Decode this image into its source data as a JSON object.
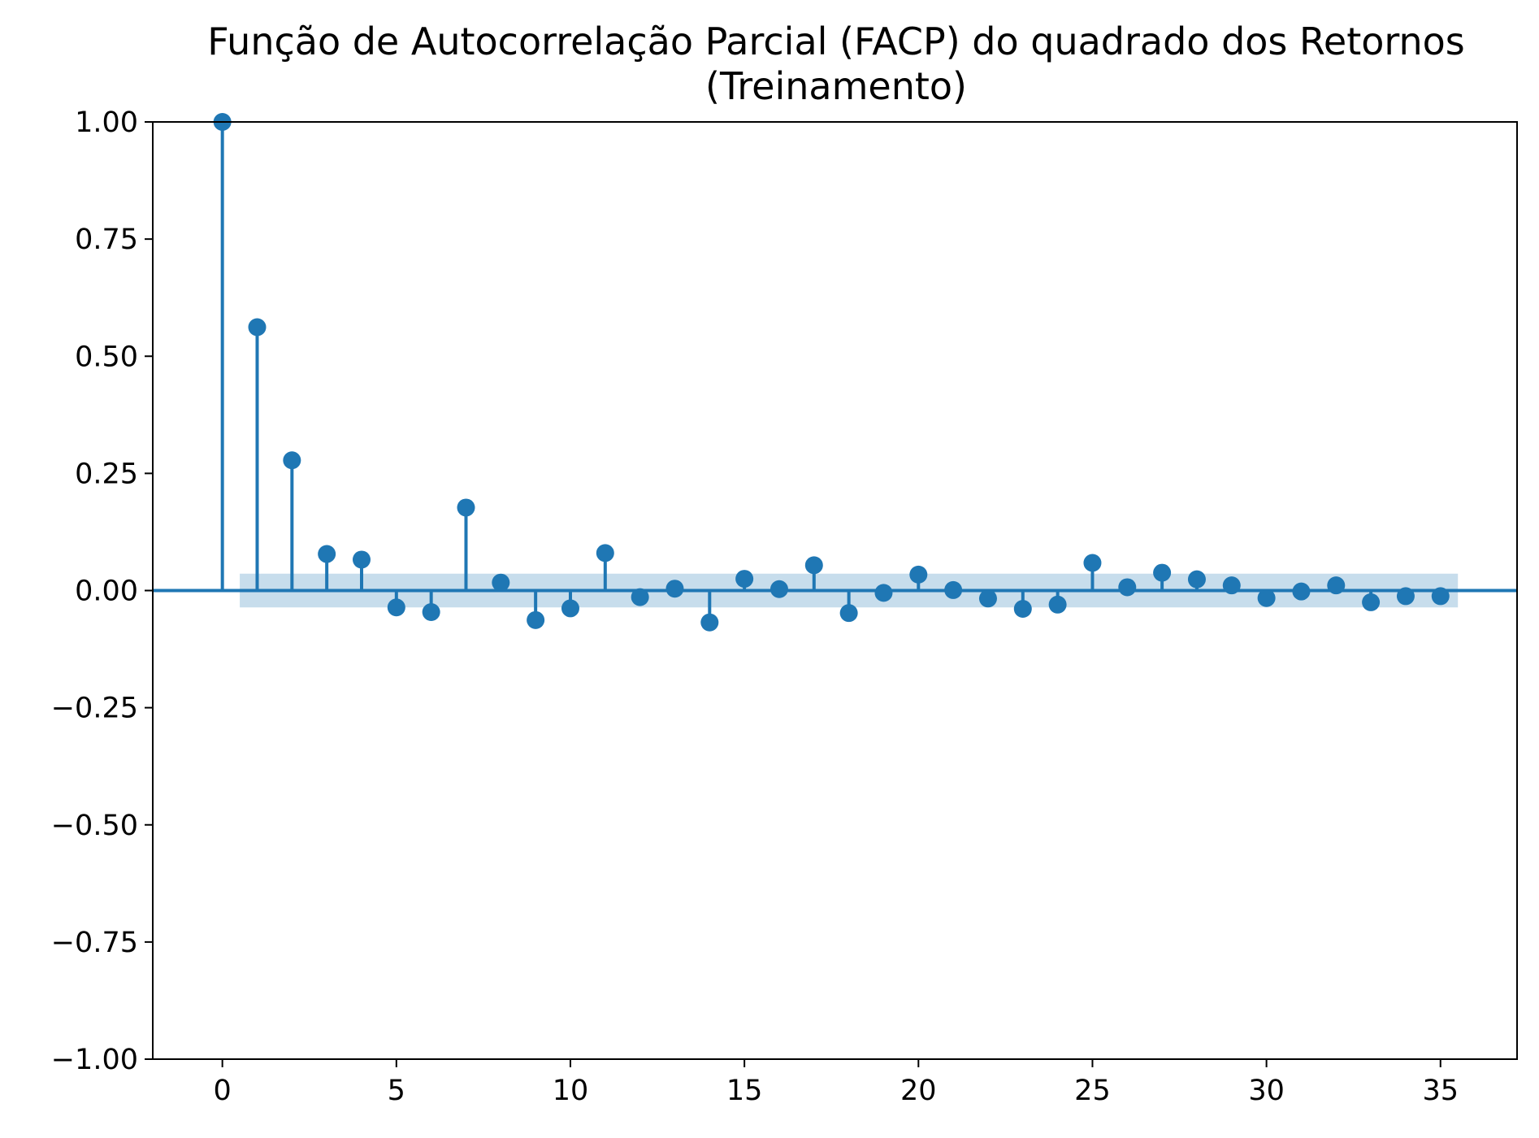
{
  "colors": {
    "series": "#1f77b4",
    "band": "#1f77b4",
    "axes": "#000000",
    "background": "#ffffff"
  },
  "chart_data": {
    "type": "stem",
    "title": "Função de Autocorrelação Parcial (FACP) do quadrado dos Retornos",
    "subtitle": "(Treinamento)",
    "xlabel": "",
    "ylabel": "",
    "xlim": [
      -2,
      37.2
    ],
    "ylim": [
      -1.0,
      1.0
    ],
    "x_ticks": [
      0,
      5,
      10,
      15,
      20,
      25,
      30,
      35
    ],
    "x_tick_labels": [
      "0",
      "5",
      "10",
      "15",
      "20",
      "25",
      "30",
      "35"
    ],
    "y_ticks": [
      1.0,
      0.75,
      0.5,
      0.25,
      0.0,
      -0.25,
      -0.5,
      -0.75,
      -1.0
    ],
    "y_tick_labels": [
      "1.00",
      "0.75",
      "0.50",
      "0.25",
      "0.00",
      "−0.25",
      "−0.50",
      "−0.75",
      "−1.00"
    ],
    "grid": false,
    "confidence_band": {
      "x_start": 0.5,
      "x_end": 35.5,
      "lower": -0.036,
      "upper": 0.036
    },
    "series": [
      {
        "lags": [
          0,
          1,
          2,
          3,
          4,
          5,
          6,
          7,
          8,
          9,
          10,
          11,
          12,
          13,
          14,
          15,
          16,
          17,
          18,
          19,
          20,
          21,
          22,
          23,
          24,
          25,
          26,
          27,
          28,
          29,
          30,
          31,
          32,
          33,
          34,
          35
        ],
        "values": [
          1.0,
          0.562,
          0.278,
          0.078,
          0.066,
          -0.036,
          -0.046,
          0.177,
          0.017,
          -0.063,
          -0.038,
          0.08,
          -0.014,
          0.004,
          -0.068,
          0.025,
          0.003,
          0.054,
          -0.048,
          -0.005,
          0.034,
          0.001,
          -0.017,
          -0.039,
          -0.03,
          0.059,
          0.007,
          0.038,
          0.024,
          0.011,
          -0.016,
          -0.002,
          0.011,
          -0.025,
          -0.012,
          -0.012
        ]
      }
    ]
  }
}
